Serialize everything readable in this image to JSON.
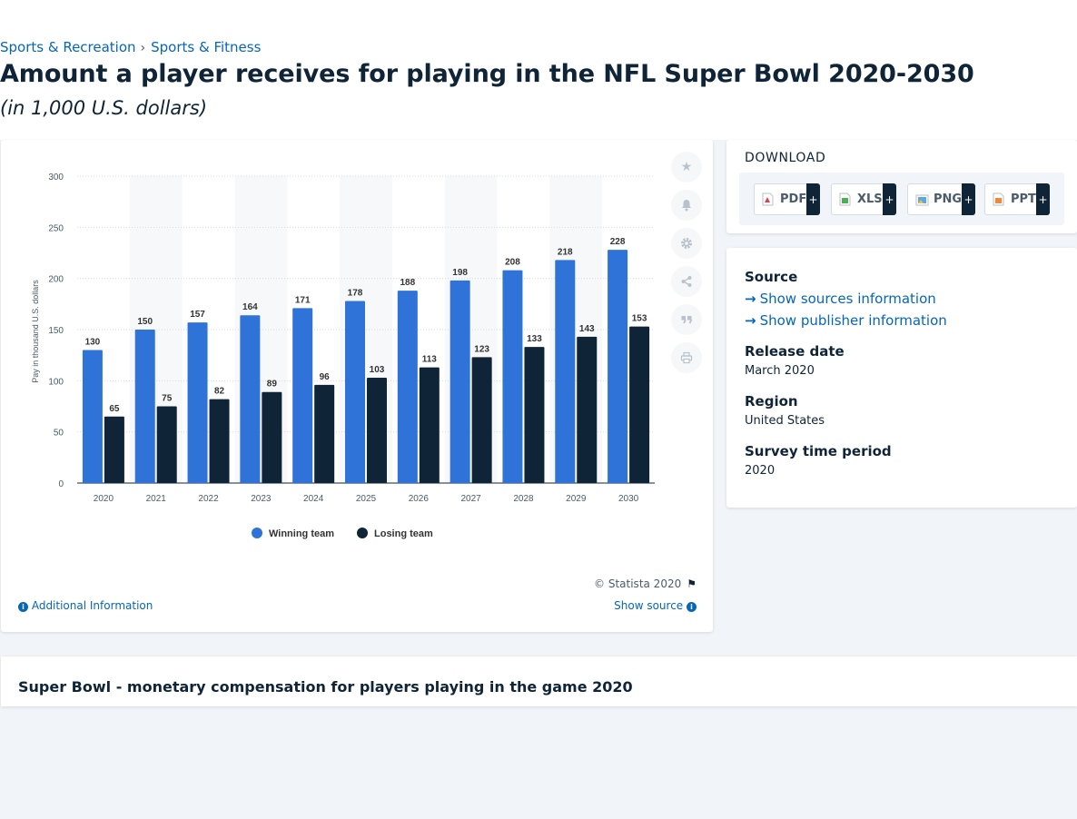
{
  "breadcrumbs": {
    "items": [
      "Sports & Recreation",
      "Sports & Fitness"
    ],
    "separator": "›"
  },
  "page": {
    "title": "Amount a player receives for playing in the NFL Super Bowl 2020-2030",
    "subtitle": "(in 1,000 U.S. dollars)"
  },
  "chart_data": {
    "type": "bar",
    "categories": [
      "2020",
      "2021",
      "2022",
      "2023",
      "2024",
      "2025",
      "2026",
      "2027",
      "2028",
      "2029",
      "2030"
    ],
    "series": [
      {
        "name": "Winning team",
        "values": [
          130,
          150,
          157,
          164,
          171,
          178,
          188,
          198,
          208,
          218,
          228
        ],
        "color": "#2f73d9"
      },
      {
        "name": "Losing team",
        "values": [
          65,
          75,
          82,
          89,
          96,
          103,
          113,
          123,
          133,
          143,
          153
        ],
        "color": "#0f2437"
      }
    ],
    "ylabel": "Pay in thousand U.S. dollars",
    "xlabel": "",
    "ylim": [
      0,
      300
    ],
    "yticks": [
      0,
      50,
      100,
      150,
      200,
      250,
      300
    ],
    "grid": true,
    "legend_position": "bottom-center",
    "data_labels": true
  },
  "chart_footer": {
    "copyright": "© Statista 2020",
    "additional_info": "Additional Information",
    "show_source": "Show source"
  },
  "side_tools": [
    "star-icon",
    "bell-icon",
    "gear-icon",
    "share-icon",
    "quote-icon",
    "print-icon"
  ],
  "download": {
    "title": "DOWNLOAD",
    "buttons": [
      {
        "label": "PDF",
        "icon": "pdf-file-icon",
        "color": "#e0414a"
      },
      {
        "label": "XLS",
        "icon": "xls-file-icon",
        "color": "#4caf50"
      },
      {
        "label": "PNG",
        "icon": "png-file-icon",
        "color": "#5aa6e6"
      },
      {
        "label": "PPT",
        "icon": "ppt-file-icon",
        "color": "#f0883a"
      }
    ],
    "plus": "+"
  },
  "info": {
    "source_heading": "Source",
    "show_sources": "Show sources information",
    "show_publisher": "Show publisher information",
    "release_heading": "Release date",
    "release_value": "March 2020",
    "region_heading": "Region",
    "region_value": "United States",
    "survey_heading": "Survey time period",
    "survey_value": "2020"
  },
  "related": {
    "title": "Super Bowl - monetary compensation for players playing in the game 2020"
  }
}
